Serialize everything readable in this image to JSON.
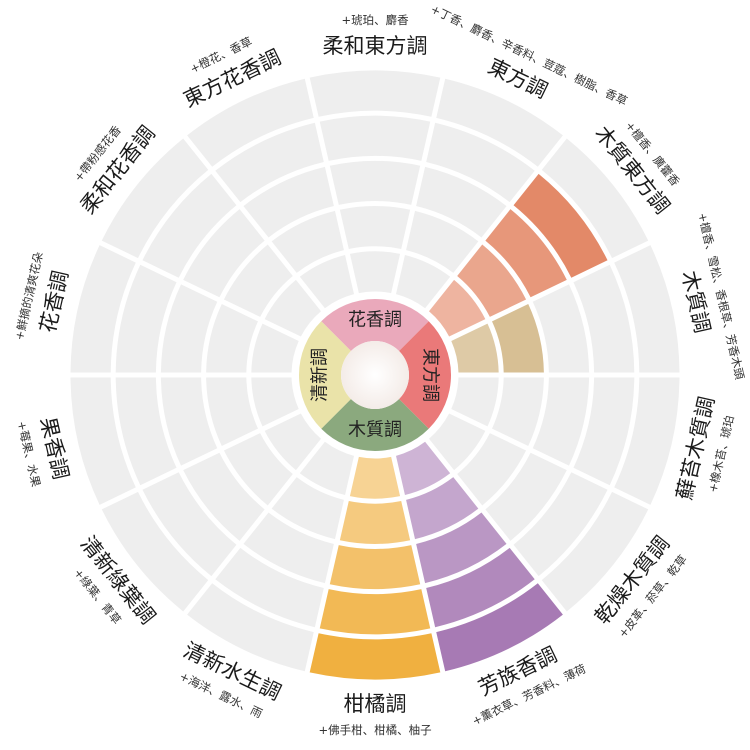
{
  "chart_data": {
    "type": "radial-bar",
    "rings": 5,
    "core": {
      "labels": [
        "花香調",
        "東方調",
        "木質調",
        "清新調"
      ],
      "colors": [
        "#e8a0b4",
        "#e86a6a",
        "#7ea070",
        "#e8e0a0"
      ]
    },
    "families": [
      {
        "name": "柔和東方調",
        "note": "+琥珀、麝香",
        "value": 0,
        "color": "#e07a55"
      },
      {
        "name": "東方調",
        "note": "+丁香、麝香、辛香料、荳蔻、樹脂、香草",
        "value": 0,
        "color": "#e07a55"
      },
      {
        "name": "木質東方調",
        "note": "+檀香、廣藿香",
        "value": 4,
        "color": "#e07a55"
      },
      {
        "name": "木質調",
        "note": "+檀香、雪松、香根草、芳香木頭",
        "value": 2,
        "color": "#c4a060"
      },
      {
        "name": "蘚苔木質調",
        "note": "+橡木苔、琥珀",
        "value": 0,
        "color": "#c4a060"
      },
      {
        "name": "乾燥木質調",
        "note": "+皮革、菸草、乾草",
        "value": 0,
        "color": "#c4a060"
      },
      {
        "name": "芳族香調",
        "note": "+薰衣草、芳香料、薄荷",
        "value": 5,
        "color": "#a77ab4"
      },
      {
        "name": "柑橘調",
        "note": "+佛手柑、柑橘、柚子",
        "value": 5,
        "color": "#f0b040"
      },
      {
        "name": "清新水生調",
        "note": "+海洋、露水、雨",
        "value": 0,
        "color": "#a0d0e0"
      },
      {
        "name": "清新綠葉調",
        "note": "+綠葉、青草",
        "value": 0,
        "color": "#a0c880"
      },
      {
        "name": "果香調",
        "note": "+莓果、水果",
        "value": 0,
        "color": "#e8a0b4"
      },
      {
        "name": "花香調",
        "note": "+鮮摘的清爽花朵",
        "value": 0,
        "color": "#e8a0b4"
      },
      {
        "name": "柔和花香調",
        "note": "+帶粉感花香",
        "value": 0,
        "color": "#e8a0b4"
      },
      {
        "name": "東方花香調",
        "note": "+橙花、香草",
        "value": 0,
        "color": "#e8a0b4"
      }
    ]
  }
}
